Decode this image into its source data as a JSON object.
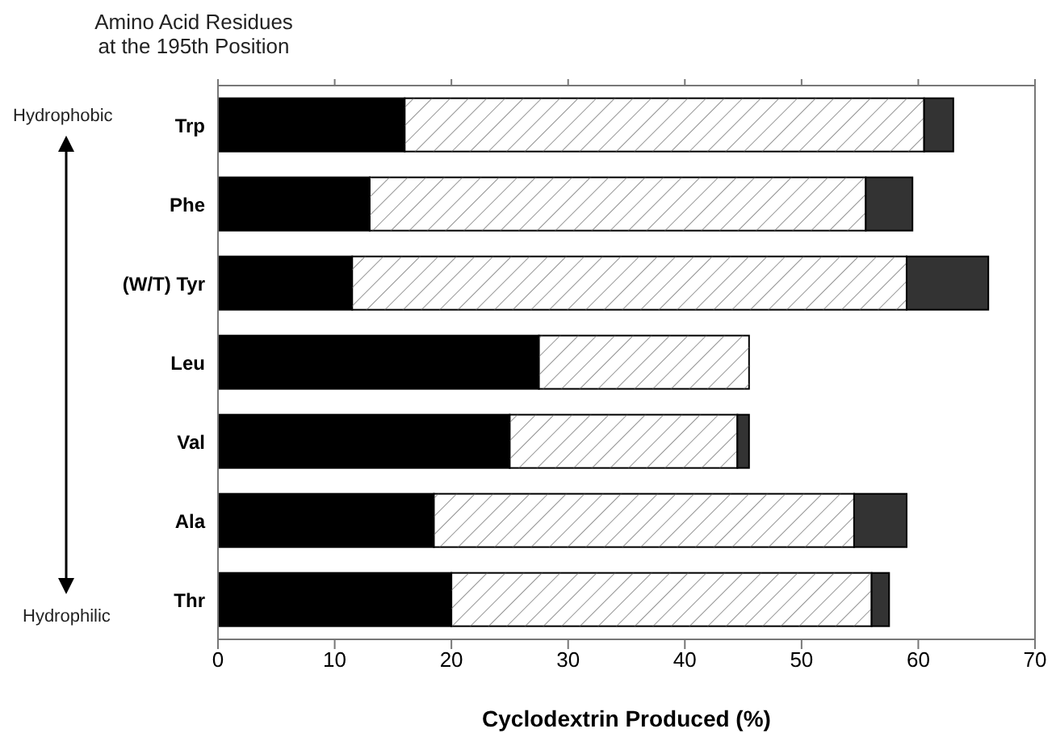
{
  "chart_data": {
    "type": "bar",
    "orientation": "horizontal",
    "stacked": true,
    "ylabel": "Amino Acid Residues\nat the 195th Position",
    "xlabel": "Cyclodextrin Produced (%)",
    "categories": [
      "Trp",
      "Phe",
      "(W/T) Tyr",
      "Leu",
      "Val",
      "Ala",
      "Thr"
    ],
    "series": [
      {
        "color": "#000000",
        "values": [
          16,
          13,
          11.5,
          27.5,
          25,
          18.5,
          20
        ]
      },
      {
        "color": "#ffffff",
        "values": [
          44.5,
          42.5,
          47.5,
          18,
          19.5,
          36,
          36
        ]
      },
      {
        "color": "#333333",
        "values": [
          2.5,
          4,
          7,
          0,
          1,
          4.5,
          1.5
        ]
      }
    ],
    "xlim": [
      0,
      70
    ],
    "xticks": [
      0,
      10,
      20,
      30,
      40,
      50,
      60,
      70
    ],
    "annotations": [
      "Hydrophobic",
      "Hydrophilic"
    ]
  }
}
